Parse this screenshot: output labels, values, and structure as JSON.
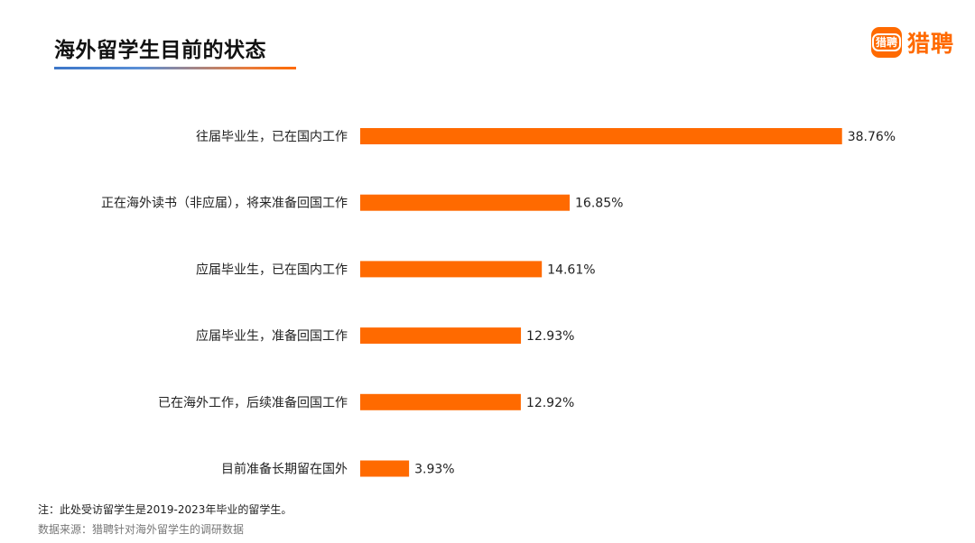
{
  "title": "海外留学生目前的状态",
  "brand": {
    "name": "猎聘",
    "icon_text": "猎聘",
    "icon": "liepin-logo-icon",
    "color": "#ff6a00"
  },
  "chart_data": {
    "type": "bar",
    "orientation": "horizontal",
    "categories": [
      "往届毕业生，已在国内工作",
      "正在海外读书（非应届），将来准备回国工作",
      "应届毕业生，已在国内工作",
      "应届毕业生，准备回国工作",
      "已在海外工作，后续准备回国工作",
      "目前准备长期留在国外"
    ],
    "values": [
      38.76,
      16.85,
      14.61,
      12.93,
      12.92,
      3.93
    ],
    "value_labels": [
      "38.76%",
      "16.85%",
      "14.61%",
      "12.93%",
      "12.92%",
      "3.93%"
    ],
    "unit": "%",
    "bar_color": "#ff6a00",
    "grid": false,
    "legend": "none"
  },
  "footer": {
    "note": "注：此处受访留学生是2019-2023年毕业的留学生。",
    "source": "数据来源：猎聘针对海外留学生的调研数据"
  }
}
